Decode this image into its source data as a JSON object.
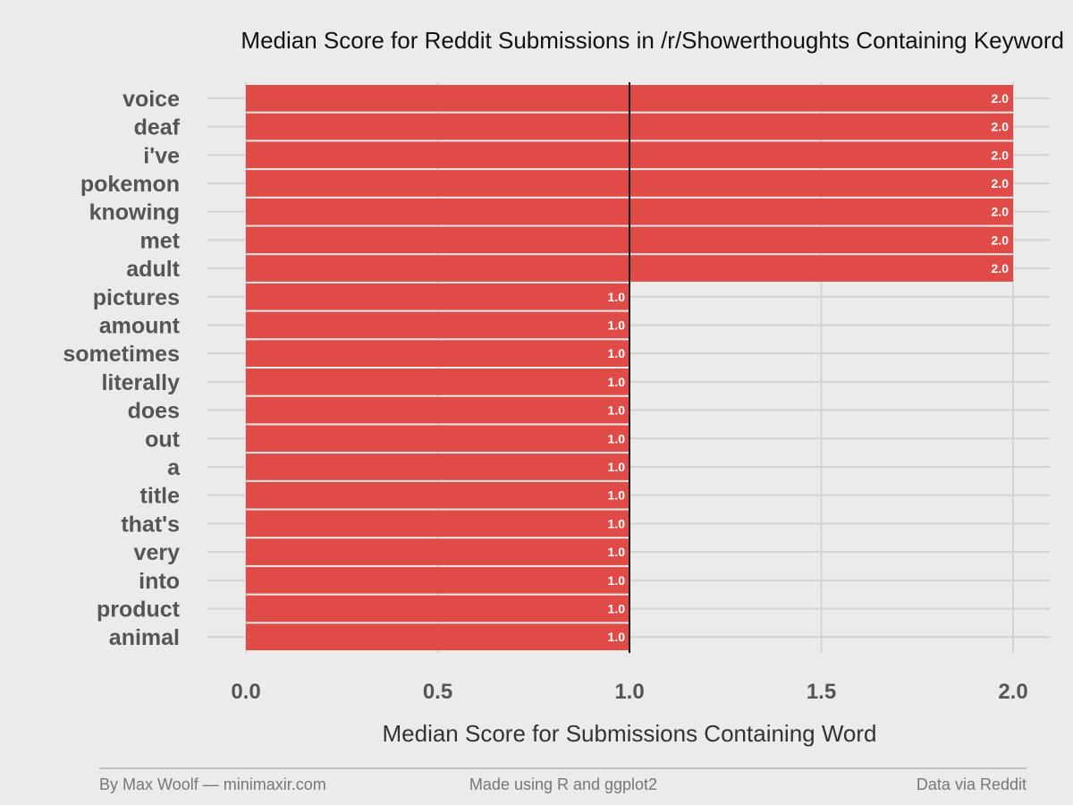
{
  "chart_data": {
    "type": "bar",
    "orientation": "horizontal",
    "title": "Median Score for Reddit Submissions in /r/Showerthoughts Containing Keyword",
    "xlabel": "Median Score for Submissions Containing Word",
    "ylabel": "",
    "categories": [
      "voice",
      "deaf",
      "i've",
      "pokemon",
      "knowing",
      "met",
      "adult",
      "pictures",
      "amount",
      "sometimes",
      "literally",
      "does",
      "out",
      "a",
      "title",
      "that's",
      "very",
      "into",
      "product",
      "animal"
    ],
    "values": [
      2.0,
      2.0,
      2.0,
      2.0,
      2.0,
      2.0,
      2.0,
      1.0,
      1.0,
      1.0,
      1.0,
      1.0,
      1.0,
      1.0,
      1.0,
      1.0,
      1.0,
      1.0,
      1.0,
      1.0
    ],
    "data_labels": [
      "2.0",
      "2.0",
      "2.0",
      "2.0",
      "2.0",
      "2.0",
      "2.0",
      "1.0",
      "1.0",
      "1.0",
      "1.0",
      "1.0",
      "1.0",
      "1.0",
      "1.0",
      "1.0",
      "1.0",
      "1.0",
      "1.0",
      "1.0"
    ],
    "xlim": [
      0,
      2
    ],
    "xticks": [
      0,
      0.5,
      1.0,
      1.5,
      2.0
    ],
    "xtick_labels": [
      "0.0",
      "0.5",
      "1.0",
      "1.5",
      "2.0"
    ],
    "reference_line": 1.0,
    "grid": true,
    "legend": "none",
    "bar_color": "#e04b47",
    "background_color": "#ebebeb"
  },
  "footer": {
    "left": "By Max Woolf — minimaxir.com",
    "center": "Made using R and ggplot2",
    "right": "Data via Reddit"
  }
}
